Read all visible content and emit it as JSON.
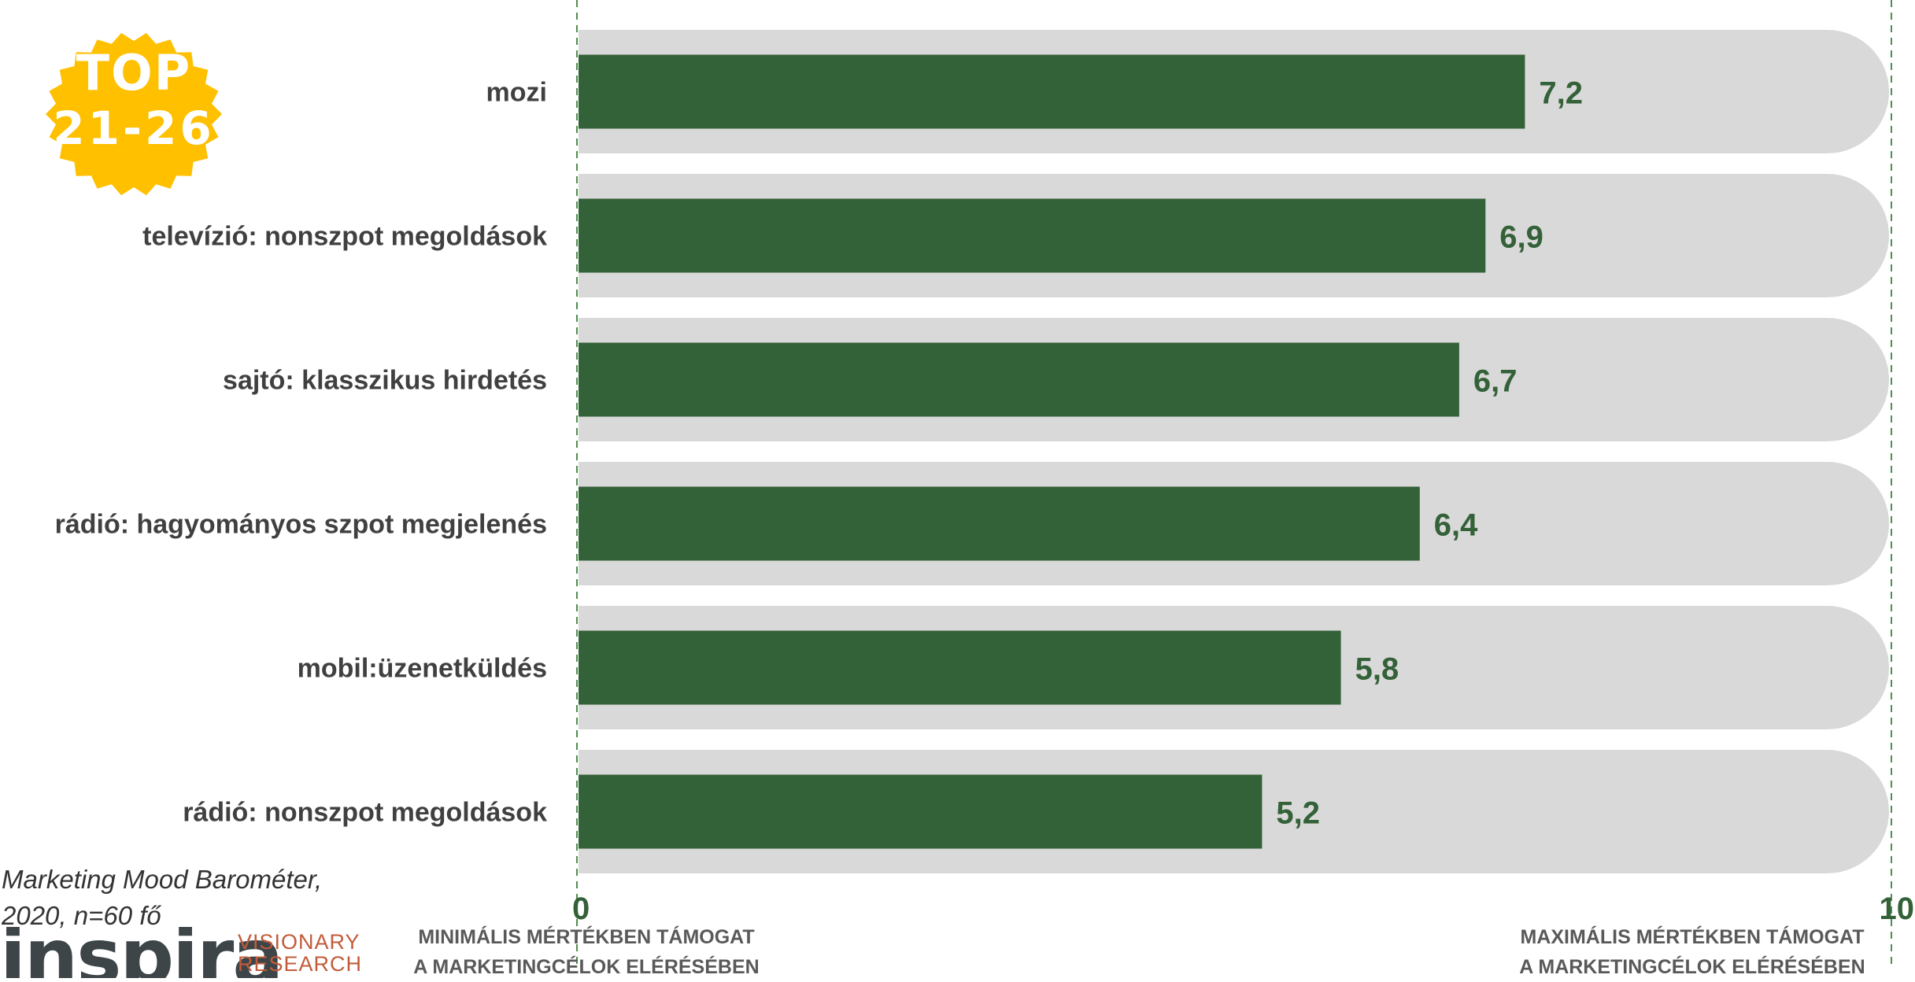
{
  "badge": {
    "top": "TOP",
    "range": "21-26"
  },
  "source": {
    "line1": "Marketing Mood Barométer,",
    "line2": "2020, n=60 fő"
  },
  "logo": {
    "word": "inspira",
    "line1": "VISIONARY",
    "line2": "RESEARCH"
  },
  "axis_captions": {
    "min": {
      "line1": "MINIMÁLIS MÉRTÉKBEN TÁMOGAT",
      "line2": "A MARKETINGCÉLOK ELÉRÉSÉBEN"
    },
    "max": {
      "line1": "MAXIMÁLIS MÉRTÉKBEN TÁMOGAT",
      "line2": "A MARKETINGCÉLOK ELÉRÉSÉBEN"
    }
  },
  "colors": {
    "bar": "#336138",
    "track": "#d9d9d9",
    "label": "#404040",
    "value": "#336138",
    "gridline": "#4e8f4f",
    "badge": "#ffc000"
  },
  "chart_data": {
    "type": "bar",
    "orientation": "horizontal",
    "categories": [
      "mozi",
      "televízió: nonszpot megoldások",
      "sajtó: klasszikus hirdetés",
      "rádió: hagyományos szpot megjelenés",
      "mobil:üzenetküldés",
      "rádió: nonszpot megoldások"
    ],
    "values": [
      7.2,
      6.9,
      6.7,
      6.4,
      5.8,
      5.2
    ],
    "value_labels": [
      "7,2",
      "6,9",
      "6,7",
      "6,4",
      "5,8",
      "5,2"
    ],
    "xlim": [
      0,
      10
    ],
    "tick_labels": [
      "0",
      "10"
    ],
    "title": "",
    "xlabel": "",
    "ylabel": "",
    "grid": false,
    "legend": "none"
  }
}
